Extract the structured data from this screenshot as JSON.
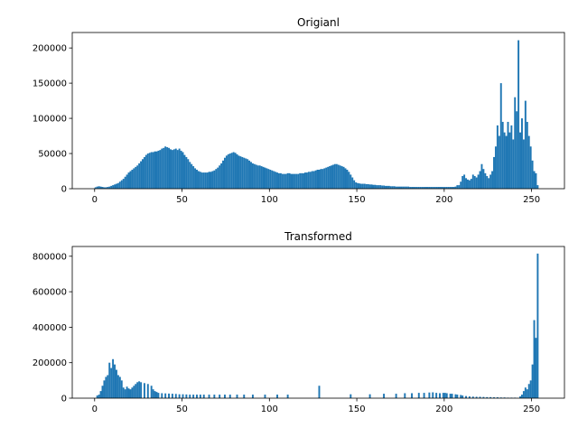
{
  "chart_data": [
    {
      "type": "histogram",
      "title": "Origianl",
      "color": "#1f77b4",
      "bins": [
        0,
        1,
        2,
        3,
        4,
        5,
        6,
        7,
        8,
        9,
        10,
        11,
        12,
        13,
        14,
        15,
        16,
        17,
        18,
        19,
        20,
        21,
        22,
        23,
        24,
        25,
        26,
        27,
        28,
        29,
        30,
        31,
        32,
        33,
        34,
        35,
        36,
        37,
        38,
        39,
        40,
        41,
        42,
        43,
        44,
        45,
        46,
        47,
        48,
        49,
        50,
        51,
        52,
        53,
        54,
        55,
        56,
        57,
        58,
        59,
        60,
        61,
        62,
        63,
        64,
        65,
        66,
        67,
        68,
        69,
        70,
        71,
        72,
        73,
        74,
        75,
        76,
        77,
        78,
        79,
        80,
        81,
        82,
        83,
        84,
        85,
        86,
        87,
        88,
        89,
        90,
        91,
        92,
        93,
        94,
        95,
        96,
        97,
        98,
        99,
        100,
        101,
        102,
        103,
        104,
        105,
        106,
        107,
        108,
        109,
        110,
        111,
        112,
        113,
        114,
        115,
        116,
        117,
        118,
        119,
        120,
        121,
        122,
        123,
        124,
        125,
        126,
        127,
        128,
        129,
        130,
        131,
        132,
        133,
        134,
        135,
        136,
        137,
        138,
        139,
        140,
        141,
        142,
        143,
        144,
        145,
        146,
        147,
        148,
        149,
        150,
        151,
        152,
        153,
        154,
        155,
        156,
        157,
        158,
        159,
        160,
        161,
        162,
        163,
        164,
        165,
        166,
        167,
        168,
        169,
        170,
        171,
        172,
        173,
        174,
        175,
        176,
        177,
        178,
        179,
        180,
        181,
        182,
        183,
        184,
        185,
        186,
        187,
        188,
        189,
        190,
        191,
        192,
        193,
        194,
        195,
        196,
        197,
        198,
        199,
        200,
        201,
        202,
        203,
        204,
        205,
        206,
        207,
        208,
        209,
        210,
        211,
        212,
        213,
        214,
        215,
        216,
        217,
        218,
        219,
        220,
        221,
        222,
        223,
        224,
        225,
        226,
        227,
        228,
        229,
        230,
        231,
        232,
        233,
        234,
        235,
        236,
        237,
        238,
        239,
        240,
        241,
        242,
        243,
        244,
        245,
        246,
        247,
        248,
        249,
        250,
        251,
        252,
        253,
        254,
        255,
        256
      ],
      "values": [
        2000,
        3000,
        3500,
        3000,
        2500,
        2000,
        2000,
        2500,
        3000,
        4000,
        5000,
        6000,
        7000,
        8000,
        10000,
        12000,
        14000,
        17000,
        20000,
        23000,
        25000,
        27000,
        29000,
        31000,
        33000,
        36000,
        39000,
        42000,
        45000,
        48000,
        50000,
        51000,
        52000,
        52000,
        53000,
        53000,
        54000,
        55000,
        57000,
        58000,
        60000,
        59000,
        58000,
        56000,
        55000,
        56000,
        57000,
        55000,
        57000,
        54000,
        52000,
        48000,
        45000,
        42000,
        38000,
        35000,
        32000,
        29000,
        27000,
        25000,
        24000,
        23000,
        23000,
        23000,
        23000,
        24000,
        24000,
        25000,
        26000,
        28000,
        30000,
        33000,
        36000,
        40000,
        44000,
        47000,
        49000,
        50000,
        51000,
        52000,
        51000,
        49000,
        47000,
        46000,
        45000,
        44000,
        43000,
        42000,
        40000,
        38000,
        36000,
        35000,
        34000,
        33000,
        33000,
        32000,
        31000,
        30000,
        29000,
        28000,
        27000,
        26000,
        25000,
        24000,
        23000,
        22000,
        22000,
        21000,
        21000,
        21000,
        22000,
        22000,
        21000,
        21000,
        21000,
        21000,
        21000,
        22000,
        22000,
        22000,
        23000,
        23000,
        24000,
        24000,
        25000,
        25000,
        26000,
        27000,
        27000,
        28000,
        28000,
        29000,
        30000,
        31000,
        32000,
        33000,
        34000,
        35000,
        35000,
        34000,
        33000,
        32000,
        31000,
        29000,
        27000,
        24000,
        20000,
        16000,
        12000,
        9000,
        8000,
        7500,
        7000,
        7000,
        7000,
        6500,
        6500,
        6000,
        6000,
        5500,
        5500,
        5000,
        5000,
        5000,
        4500,
        4500,
        4000,
        4000,
        4000,
        3500,
        3500,
        3500,
        3000,
        3000,
        3000,
        3000,
        3000,
        3000,
        3000,
        3000,
        2500,
        2500,
        2500,
        2500,
        2500,
        2500,
        2500,
        2500,
        2500,
        2500,
        2500,
        2500,
        2500,
        2500,
        2500,
        2500,
        2500,
        2500,
        2500,
        2500,
        2500,
        2500,
        2500,
        2500,
        2500,
        2500,
        3000,
        5000,
        5000,
        10000,
        18000,
        20000,
        15000,
        13000,
        12000,
        14000,
        20000,
        18000,
        16000,
        20000,
        25000,
        35000,
        28000,
        22000,
        18000,
        15000,
        20000,
        25000,
        45000,
        60000,
        90000,
        75000,
        150000,
        95000,
        80000,
        75000,
        95000,
        80000,
        90000,
        70000,
        130000,
        110000,
        211000,
        80000,
        100000,
        70000,
        125000,
        95000,
        75000,
        60000,
        40000,
        25000,
        22000,
        5000,
        0,
        0
      ],
      "xlim": [
        -12.8,
        268.8
      ],
      "xticks": [
        0,
        50,
        100,
        150,
        200,
        250
      ],
      "ylim": [
        0,
        222000
      ],
      "yticks": [
        0,
        50000,
        100000,
        150000,
        200000
      ]
    },
    {
      "type": "histogram",
      "title": "Transformed",
      "color": "#1f77b4",
      "bins": [
        0,
        1,
        2,
        3,
        4,
        5,
        6,
        7,
        8,
        9,
        10,
        11,
        12,
        13,
        14,
        15,
        16,
        17,
        18,
        19,
        20,
        21,
        22,
        23,
        24,
        25,
        26,
        27,
        28,
        29,
        30,
        31,
        32,
        33,
        34,
        35,
        36,
        37,
        38,
        39,
        40,
        41,
        42,
        43,
        44,
        45,
        46,
        47,
        48,
        49,
        50,
        51,
        52,
        53,
        54,
        55,
        56,
        57,
        58,
        59,
        60,
        61,
        62,
        63,
        64,
        65,
        66,
        67,
        68,
        69,
        70,
        71,
        72,
        73,
        74,
        75,
        76,
        77,
        78,
        79,
        80,
        81,
        82,
        83,
        84,
        85,
        86,
        87,
        88,
        89,
        90,
        91,
        92,
        93,
        94,
        95,
        96,
        97,
        98,
        99,
        100,
        101,
        102,
        103,
        104,
        105,
        106,
        107,
        108,
        109,
        110,
        111,
        112,
        113,
        114,
        115,
        116,
        117,
        118,
        119,
        120,
        121,
        122,
        123,
        124,
        125,
        126,
        127,
        128,
        129,
        130,
        131,
        132,
        133,
        134,
        135,
        136,
        137,
        138,
        139,
        140,
        141,
        142,
        143,
        144,
        145,
        146,
        147,
        148,
        149,
        150,
        151,
        152,
        153,
        154,
        155,
        156,
        157,
        158,
        159,
        160,
        161,
        162,
        163,
        164,
        165,
        166,
        167,
        168,
        169,
        170,
        171,
        172,
        173,
        174,
        175,
        176,
        177,
        178,
        179,
        180,
        181,
        182,
        183,
        184,
        185,
        186,
        187,
        188,
        189,
        190,
        191,
        192,
        193,
        194,
        195,
        196,
        197,
        198,
        199,
        200,
        201,
        202,
        203,
        204,
        205,
        206,
        207,
        208,
        209,
        210,
        211,
        212,
        213,
        214,
        215,
        216,
        217,
        218,
        219,
        220,
        221,
        222,
        223,
        224,
        225,
        226,
        227,
        228,
        229,
        230,
        231,
        232,
        233,
        234,
        235,
        236,
        237,
        238,
        239,
        240,
        241,
        242,
        243,
        244,
        245,
        246,
        247,
        248,
        249,
        250,
        251,
        252,
        253,
        254,
        255,
        256
      ],
      "values": [
        0,
        15000,
        20000,
        40000,
        70000,
        100000,
        120000,
        130000,
        200000,
        170000,
        220000,
        190000,
        160000,
        130000,
        120000,
        100000,
        60000,
        50000,
        65000,
        55000,
        50000,
        60000,
        70000,
        80000,
        90000,
        95000,
        90000,
        0,
        85000,
        0,
        80000,
        0,
        70000,
        50000,
        40000,
        35000,
        30000,
        0,
        28000,
        0,
        27000,
        0,
        26000,
        0,
        25000,
        0,
        24000,
        0,
        22000,
        0,
        22000,
        0,
        21000,
        0,
        20000,
        0,
        20000,
        0,
        20000,
        0,
        20000,
        0,
        20000,
        0,
        0,
        20000,
        0,
        0,
        20000,
        0,
        0,
        20000,
        0,
        0,
        20000,
        0,
        0,
        20000,
        0,
        0,
        0,
        20000,
        0,
        0,
        0,
        20000,
        0,
        0,
        0,
        0,
        20000,
        0,
        0,
        0,
        0,
        0,
        0,
        20000,
        0,
        0,
        0,
        0,
        0,
        0,
        20000,
        0,
        0,
        0,
        0,
        0,
        20000,
        0,
        0,
        0,
        0,
        0,
        0,
        0,
        0,
        0,
        0,
        0,
        0,
        0,
        0,
        0,
        0,
        0,
        70000,
        0,
        0,
        0,
        0,
        0,
        0,
        0,
        0,
        0,
        0,
        0,
        0,
        0,
        0,
        0,
        0,
        0,
        22000,
        0,
        0,
        0,
        0,
        0,
        0,
        0,
        0,
        0,
        0,
        22000,
        0,
        0,
        0,
        0,
        0,
        0,
        0,
        25000,
        0,
        0,
        0,
        0,
        0,
        0,
        25000,
        0,
        0,
        0,
        0,
        28000,
        0,
        0,
        0,
        28000,
        0,
        0,
        0,
        30000,
        0,
        0,
        30000,
        0,
        0,
        32000,
        0,
        33000,
        0,
        30000,
        0,
        28000,
        0,
        30000,
        30000,
        28000,
        0,
        25000,
        25000,
        0,
        22000,
        20000,
        0,
        18000,
        15000,
        0,
        12000,
        0,
        10000,
        0,
        9000,
        0,
        8000,
        0,
        8000,
        0,
        7000,
        0,
        6000,
        0,
        6000,
        0,
        5000,
        0,
        5000,
        0,
        4000,
        0,
        4000,
        0,
        3000,
        0,
        3000,
        0,
        3000,
        0,
        0,
        10000,
        20000,
        40000,
        60000,
        50000,
        80000,
        100000,
        190000,
        440000,
        340000,
        815000,
        0,
        0
      ],
      "xlim": [
        -12.8,
        268.8
      ],
      "xticks": [
        0,
        50,
        100,
        150,
        200,
        250
      ],
      "ylim": [
        0,
        855000
      ],
      "yticks": [
        0,
        200000,
        400000,
        600000,
        800000
      ]
    }
  ]
}
